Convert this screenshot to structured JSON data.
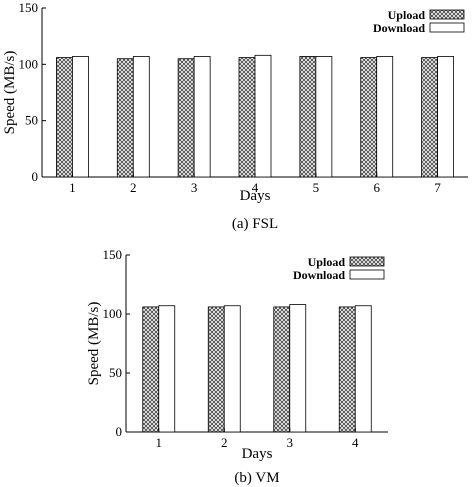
{
  "chart_data": [
    {
      "type": "bar",
      "caption": "(a) FSL",
      "xlabel": "Days",
      "ylabel": "Speed (MB/s)",
      "ylim": [
        0,
        150
      ],
      "yticks": [
        0,
        50,
        100,
        150
      ],
      "categories": [
        "1",
        "2",
        "3",
        "4",
        "5",
        "6",
        "7"
      ],
      "series": [
        {
          "name": "Upload",
          "values": [
            106,
            105,
            105,
            106,
            107,
            106,
            106
          ]
        },
        {
          "name": "Download",
          "values": [
            107,
            107,
            107,
            108,
            107,
            107,
            107
          ]
        }
      ],
      "legend_position": "top-right",
      "grid": false
    },
    {
      "type": "bar",
      "caption": "(b) VM",
      "xlabel": "Days",
      "ylabel": "Speed (MB/s)",
      "ylim": [
        0,
        150
      ],
      "yticks": [
        0,
        50,
        100,
        150
      ],
      "categories": [
        "1",
        "2",
        "3",
        "4"
      ],
      "series": [
        {
          "name": "Upload",
          "values": [
            106,
            106,
            106,
            106
          ]
        },
        {
          "name": "Download",
          "values": [
            107,
            107,
            108,
            107
          ]
        }
      ],
      "legend_position": "top-right",
      "grid": false
    }
  ]
}
